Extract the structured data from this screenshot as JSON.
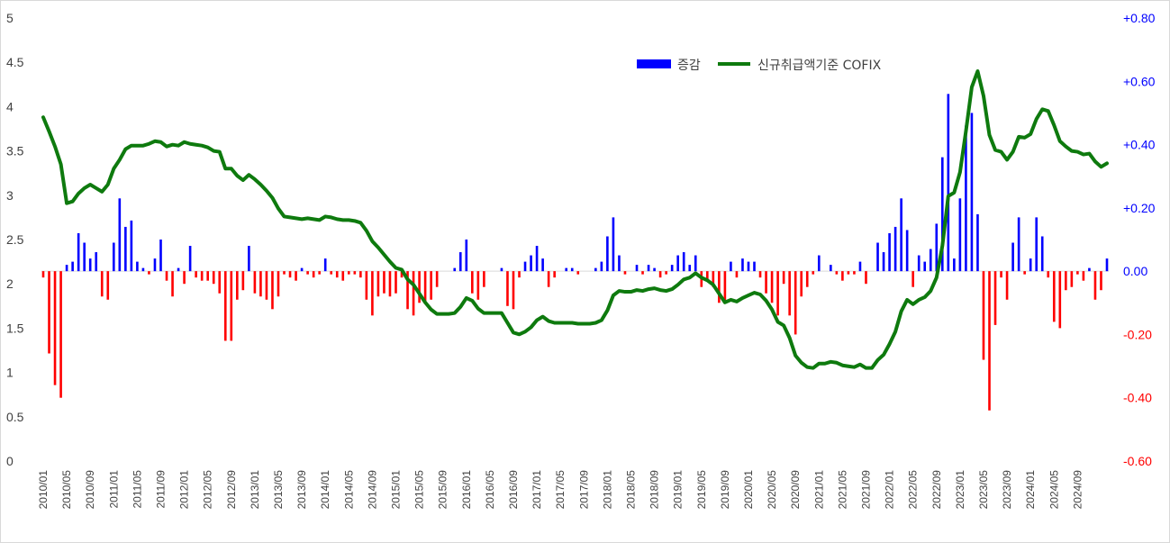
{
  "chart_data": {
    "type": "bar+line",
    "title": "",
    "legend": {
      "placement": "top-right",
      "entries": [
        {
          "name": "증감",
          "type": "bar",
          "color": "#0000ff"
        },
        {
          "name": "신규취급액기준 COFIX",
          "type": "line",
          "color": "#0e7a0e"
        }
      ]
    },
    "colors": {
      "bar_positive": "#0000ff",
      "bar_negative": "#ff0000",
      "line": "#0e7a0e",
      "right_axis_positive": "#0000ff",
      "right_axis_negative": "#ff0000"
    },
    "left_axis": {
      "min": 0,
      "max": 5,
      "step": 0.5,
      "tick_labels": [
        "0",
        "0.5",
        "1",
        "1.5",
        "2",
        "2.5",
        "3",
        "3.5",
        "4",
        "4.5",
        "5"
      ]
    },
    "right_axis": {
      "min": -0.6,
      "max": 0.8,
      "step": 0.2,
      "tick_labels": [
        "-0.60",
        "-0.40",
        "-0.20",
        "0.00",
        "+0.20",
        "+0.40",
        "+0.60",
        "+0.80"
      ]
    },
    "x_tick_labels": [
      "2010/01",
      "2010/05",
      "2010/09",
      "2011/01",
      "2011/05",
      "2011/09",
      "2012/01",
      "2012/05",
      "2012/09",
      "2013/01",
      "2013/05",
      "2013/09",
      "2014/01",
      "2014/05",
      "2014/09",
      "2015/01",
      "2015/05",
      "2015/09",
      "2016/01",
      "2016/05",
      "2016/09",
      "2017/01",
      "2017/05",
      "2017/09",
      "2018/01",
      "2018/05",
      "2018/09",
      "2019/01",
      "2019/05",
      "2019/09",
      "2020/01",
      "2020/05",
      "2020/09",
      "2021/01",
      "2021/05",
      "2021/09",
      "2022/01",
      "2022/05",
      "2022/09",
      "2023/01",
      "2023/05",
      "2023/09",
      "2024/01",
      "2024/05",
      "2024/09"
    ],
    "line_series": {
      "name": "신규취급액기준 COFIX",
      "values": [
        3.88,
        3.72,
        3.55,
        3.35,
        2.91,
        2.93,
        3.02,
        3.08,
        3.12,
        3.08,
        3.04,
        3.12,
        3.3,
        3.4,
        3.52,
        3.56,
        3.56,
        3.56,
        3.58,
        3.61,
        3.6,
        3.55,
        3.57,
        3.56,
        3.6,
        3.58,
        3.57,
        3.56,
        3.54,
        3.5,
        3.49,
        3.3,
        3.3,
        3.22,
        3.17,
        3.23,
        3.18,
        3.12,
        3.05,
        2.97,
        2.85,
        2.76,
        2.75,
        2.74,
        2.73,
        2.74,
        2.73,
        2.72,
        2.76,
        2.75,
        2.73,
        2.72,
        2.72,
        2.71,
        2.69,
        2.6,
        2.48,
        2.41,
        2.33,
        2.25,
        2.18,
        2.16,
        2.05,
        1.99,
        1.89,
        1.79,
        1.71,
        1.66,
        1.66,
        1.66,
        1.67,
        1.74,
        1.84,
        1.81,
        1.72,
        1.67,
        1.67,
        1.67,
        1.67,
        1.56,
        1.45,
        1.43,
        1.46,
        1.51,
        1.59,
        1.63,
        1.58,
        1.56,
        1.56,
        1.56,
        1.56,
        1.55,
        1.55,
        1.55,
        1.56,
        1.59,
        1.7,
        1.87,
        1.92,
        1.91,
        1.91,
        1.93,
        1.92,
        1.94,
        1.95,
        1.93,
        1.92,
        1.94,
        1.99,
        2.05,
        2.07,
        2.12,
        2.07,
        2.04,
        1.99,
        1.89,
        1.79,
        1.82,
        1.8,
        1.84,
        1.87,
        1.9,
        1.88,
        1.81,
        1.71,
        1.57,
        1.53,
        1.39,
        1.19,
        1.11,
        1.06,
        1.05,
        1.1,
        1.1,
        1.12,
        1.11,
        1.08,
        1.07,
        1.06,
        1.09,
        1.05,
        1.05,
        1.14,
        1.2,
        1.32,
        1.46,
        1.69,
        1.82,
        1.77,
        1.82,
        1.85,
        1.92,
        2.07,
        2.43,
        2.99,
        3.03,
        3.26,
        3.72,
        4.22,
        4.4,
        4.12,
        3.68,
        3.51,
        3.49,
        3.4,
        3.49,
        3.66,
        3.65,
        3.69,
        3.86,
        3.97,
        3.95,
        3.79,
        3.61,
        3.55,
        3.5,
        3.49,
        3.46,
        3.47,
        3.38,
        3.32,
        3.36
      ]
    },
    "bar_series": {
      "name": "증감",
      "values": [
        -0.02,
        -0.26,
        -0.36,
        -0.4,
        0.02,
        0.03,
        0.12,
        0.09,
        0.04,
        0.06,
        -0.08,
        -0.09,
        0.09,
        0.23,
        0.14,
        0.16,
        0.03,
        0.01,
        -0.01,
        0.04,
        0.1,
        -0.03,
        -0.08,
        0.01,
        -0.04,
        0.08,
        -0.02,
        -0.03,
        -0.03,
        -0.04,
        -0.07,
        -0.22,
        -0.22,
        -0.09,
        -0.06,
        0.08,
        -0.07,
        -0.08,
        -0.09,
        -0.12,
        -0.08,
        -0.01,
        -0.02,
        -0.03,
        0.01,
        -0.01,
        -0.02,
        -0.01,
        0.04,
        -0.01,
        -0.02,
        -0.03,
        -0.01,
        -0.01,
        -0.02,
        -0.09,
        -0.14,
        -0.08,
        -0.07,
        -0.08,
        -0.07,
        -0.02,
        -0.12,
        -0.14,
        -0.1,
        -0.1,
        -0.09,
        -0.05,
        0.0,
        0.0,
        0.01,
        0.06,
        0.1,
        -0.07,
        -0.09,
        -0.05,
        0.0,
        0.0,
        0.01,
        -0.11,
        -0.12,
        -0.02,
        0.03,
        0.05,
        0.08,
        0.04,
        -0.05,
        -0.02,
        0.0,
        0.01,
        0.01,
        -0.01,
        0.0,
        0.0,
        0.01,
        0.03,
        0.11,
        0.17,
        0.05,
        -0.01,
        0.0,
        0.02,
        -0.01,
        0.02,
        0.01,
        -0.02,
        -0.01,
        0.02,
        0.05,
        0.06,
        0.02,
        0.05,
        -0.05,
        -0.03,
        -0.05,
        -0.1,
        -0.1,
        0.03,
        -0.02,
        0.04,
        0.03,
        0.03,
        -0.02,
        -0.07,
        -0.1,
        -0.14,
        -0.04,
        -0.14,
        -0.2,
        -0.08,
        -0.05,
        -0.01,
        0.05,
        0.0,
        0.02,
        -0.01,
        -0.03,
        -0.01,
        -0.01,
        0.03,
        -0.04,
        0.0,
        0.09,
        0.06,
        0.12,
        0.14,
        0.23,
        0.13,
        -0.05,
        0.05,
        0.03,
        0.07,
        0.15,
        0.36,
        0.56,
        0.04,
        0.23,
        0.46,
        0.5,
        0.18,
        -0.28,
        -0.44,
        -0.17,
        -0.02,
        -0.09,
        0.09,
        0.17,
        -0.01,
        0.04,
        0.17,
        0.11,
        -0.02,
        -0.16,
        -0.18,
        -0.06,
        -0.05,
        -0.01,
        -0.03,
        0.01,
        -0.09,
        -0.06,
        0.04
      ]
    }
  }
}
